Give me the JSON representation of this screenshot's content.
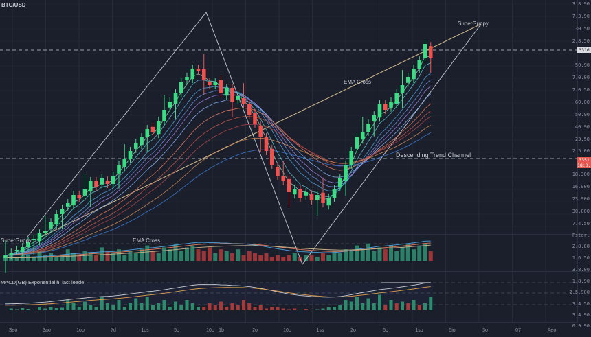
{
  "header": {
    "symbol": "BTC/USD"
  },
  "annotations": {
    "superguppy_top": "SuperGuppy",
    "ema_cross_main": "EMA Cross",
    "channel": "Descending Trend Channel",
    "superguppy_pane": "SuperGuppy",
    "ema_cross_pane": "EMA Cross",
    "macd_pane": "MACD(GB) Exponential hi lact leade"
  },
  "price_axis": {
    "labels": [
      "3.8.90",
      "7.3.90",
      "30.50",
      "2.8.50",
      "50.90",
      "7.0.00",
      "7.0.50",
      "60.00",
      "50.90",
      "40.90",
      "23.50",
      "2.5.00",
      "18.300",
      "16.900",
      "23.900",
      "30.000",
      "7.4.50"
    ],
    "badge_upper": "3316",
    "badge_lower": [
      "3351",
      "18:0.1"
    ],
    "volume_labels": [
      "Fsterl",
      "2.8.80",
      "1.6.50",
      "3.8.00"
    ],
    "macd_labels": [
      "1.8.90",
      "2.5.900",
      "3.4.50",
      "3.4.90",
      "0.9.90"
    ]
  },
  "time_axis": {
    "labels": [
      "Seo",
      "3ao",
      "1oo",
      "7d",
      "1os",
      "5o",
      "10o",
      "1b",
      "2o",
      "10o",
      "1ss",
      "2o",
      "5o",
      "1so",
      "5io",
      "3o",
      "07",
      "Aeo"
    ]
  },
  "colors": {
    "up": "#26a69a",
    "up_bright": "#3ddc84",
    "down": "#ef5350",
    "bg": "#1b1f2b",
    "grid": "#262b38"
  },
  "chart_data": {
    "type": "candlestick",
    "title": "BTC/USD",
    "closes": [
      7,
      8,
      9,
      10,
      12,
      13,
      15,
      16,
      19,
      22,
      24,
      26,
      29,
      28,
      31,
      34,
      32,
      35,
      33,
      36,
      40,
      42,
      45,
      48,
      50,
      53,
      52,
      56,
      60,
      63,
      66,
      70,
      72,
      75,
      74,
      71,
      69,
      70,
      66,
      68,
      63,
      65,
      62,
      58,
      55,
      50,
      45,
      40,
      36,
      34,
      30,
      31,
      28,
      30,
      27,
      29,
      26,
      28,
      31,
      35,
      40,
      45,
      50,
      52,
      55,
      58,
      62,
      60,
      63,
      66,
      69,
      72,
      75,
      78,
      84,
      79
    ],
    "volume": [
      2,
      3,
      2,
      4,
      3,
      2,
      5,
      3,
      4,
      2,
      3,
      6,
      4,
      3,
      5,
      4,
      3,
      7,
      5,
      4,
      6,
      3,
      5,
      4,
      6,
      8,
      5,
      4,
      7,
      6,
      9,
      5,
      7,
      8,
      6,
      5,
      7,
      4,
      6,
      5,
      4,
      6,
      3,
      5,
      4,
      3,
      4,
      2,
      3,
      2,
      3,
      4,
      2,
      3,
      3,
      2,
      4,
      3,
      5,
      4,
      6,
      5,
      8,
      6,
      9,
      5,
      7,
      6,
      8,
      5,
      7,
      9,
      6,
      8,
      9,
      5
    ],
    "macd_hist": [
      0,
      0.5,
      0.3,
      0.6,
      0.4,
      0.2,
      0.8,
      0.5,
      1,
      0.6,
      0.7,
      3,
      2,
      1,
      2.5,
      1.5,
      1,
      4,
      2,
      1.5,
      3,
      1,
      2,
      3.5,
      2,
      4,
      1.5,
      2,
      3,
      1,
      2.5,
      1.5,
      3,
      2,
      1,
      -1,
      -2,
      -1.5,
      -2.5,
      -1,
      -2,
      -1.5,
      -3,
      -2,
      -1,
      -1.5,
      -0.5,
      -1,
      -0.8,
      -0.5,
      -0.3,
      -0.5,
      -0.2,
      -0.4,
      0.2,
      0.3,
      0.5,
      0.8,
      1,
      1.5,
      3,
      2.5,
      4,
      2,
      3.5,
      2,
      4.5,
      -1.5,
      3,
      -2,
      2.5,
      -2,
      3,
      -1.5,
      2,
      4
    ]
  }
}
